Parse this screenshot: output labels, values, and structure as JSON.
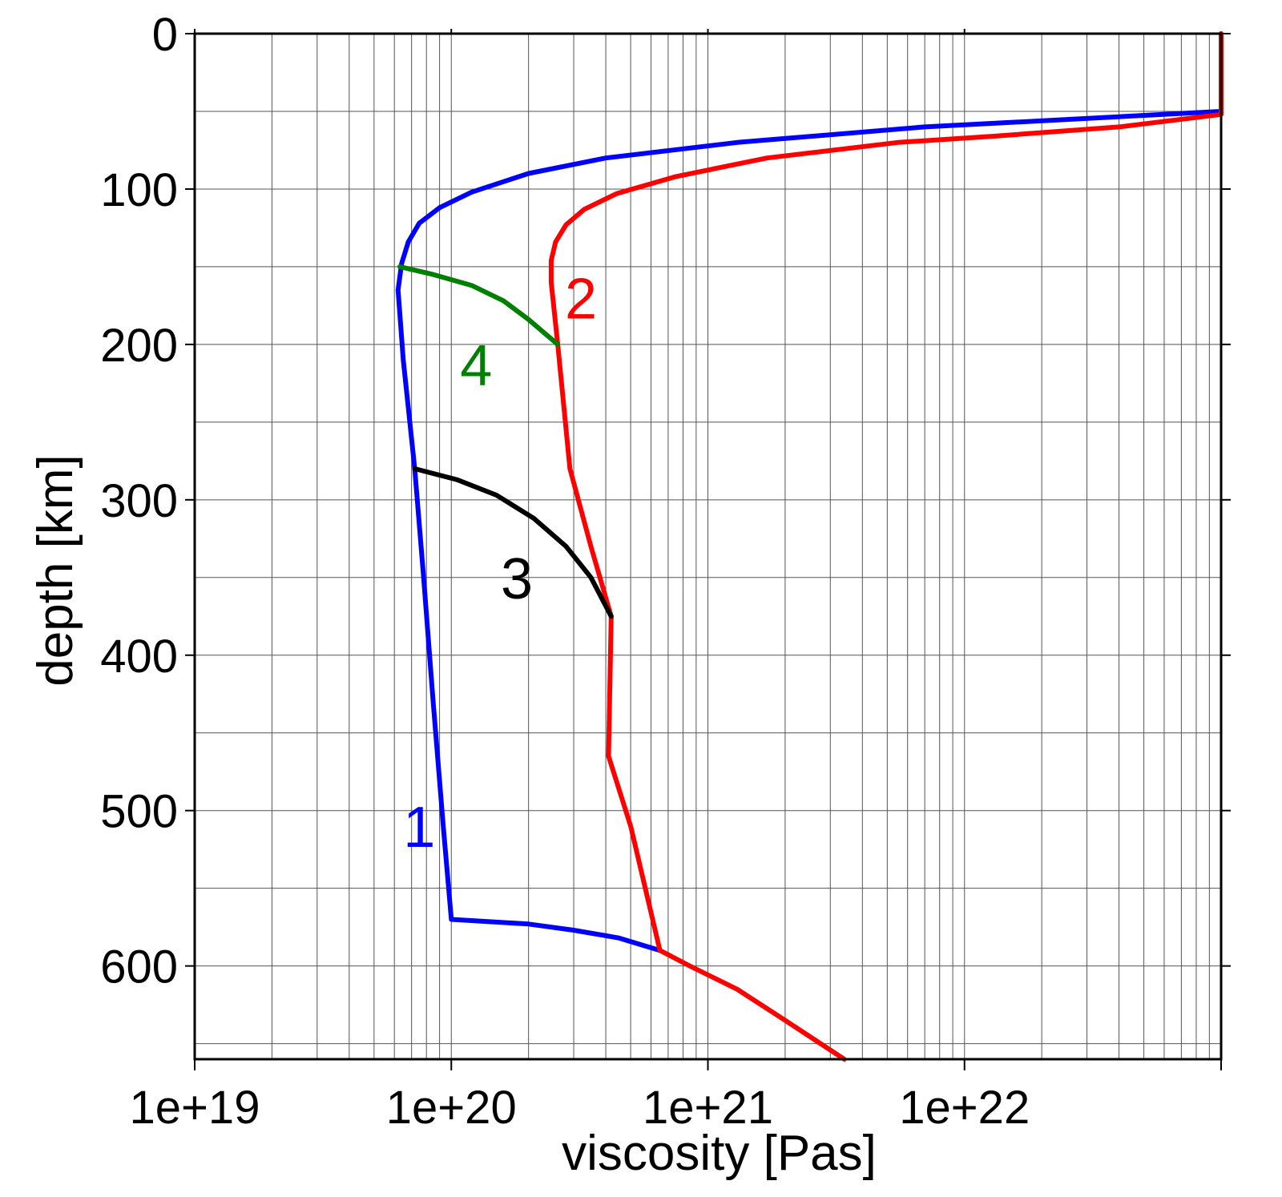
{
  "chart_data": {
    "type": "line",
    "title": "",
    "xlabel": "viscosity [Pas]",
    "ylabel": "depth [km]",
    "x_scale": "log",
    "xlim": [
      1e+19,
      1e+23
    ],
    "ylim": [
      0,
      660
    ],
    "y_inverted": true,
    "grid": true,
    "x_ticks": [
      {
        "value": 1e+19,
        "label": "1e+19"
      },
      {
        "value": 1e+20,
        "label": "1e+20"
      },
      {
        "value": 1e+21,
        "label": "1e+21"
      },
      {
        "value": 1e+22,
        "label": "1e+22"
      }
    ],
    "y_ticks": [
      {
        "value": 0,
        "label": "0"
      },
      {
        "value": 100,
        "label": "100"
      },
      {
        "value": 200,
        "label": "200"
      },
      {
        "value": 300,
        "label": "300"
      },
      {
        "value": 400,
        "label": "400"
      },
      {
        "value": 500,
        "label": "500"
      },
      {
        "value": 600,
        "label": "600"
      }
    ],
    "series": [
      {
        "label": "1",
        "color": "#0000ff",
        "label_at": [
          7.5e+19,
          510
        ],
        "points": [
          [
            1e+23,
            0
          ],
          [
            1e+23,
            50
          ],
          [
            7e+21,
            60
          ],
          [
            1.3e+21,
            70
          ],
          [
            4e+20,
            80
          ],
          [
            2e+20,
            90
          ],
          [
            1.2e+20,
            102
          ],
          [
            9e+19,
            112
          ],
          [
            7.5e+19,
            122
          ],
          [
            6.8e+19,
            134
          ],
          [
            6.4e+19,
            148
          ],
          [
            6.2e+19,
            165
          ],
          [
            6.5e+19,
            210
          ],
          [
            7.2e+19,
            280
          ],
          [
            7.8e+19,
            350
          ],
          [
            8.5e+19,
            430
          ],
          [
            9.3e+19,
            510
          ],
          [
            1e+20,
            570
          ],
          [
            2e+20,
            573
          ],
          [
            3e+20,
            577
          ],
          [
            4.5e+20,
            582
          ],
          [
            6.5e+20,
            590
          ]
        ]
      },
      {
        "label": "2",
        "color": "#ff0000",
        "label_at": [
          3.2e+20,
          170
        ],
        "points": [
          [
            1e+23,
            0
          ],
          [
            1e+23,
            52
          ],
          [
            4e+22,
            60
          ],
          [
            1.3e+22,
            66
          ],
          [
            5.5e+21,
            70
          ],
          [
            1.7e+21,
            80
          ],
          [
            7.5e+20,
            92
          ],
          [
            4.4e+20,
            103
          ],
          [
            3.3e+20,
            113
          ],
          [
            2.8e+20,
            123
          ],
          [
            2.55e+20,
            134
          ],
          [
            2.45e+20,
            146
          ],
          [
            2.45e+20,
            160
          ],
          [
            2.6e+20,
            200
          ],
          [
            2.9e+20,
            280
          ],
          [
            3.5e+20,
            330
          ],
          [
            4.2e+20,
            375
          ],
          [
            4.1e+20,
            465
          ],
          [
            5e+20,
            510
          ],
          [
            6.5e+20,
            590
          ],
          [
            8.5e+20,
            600
          ],
          [
            1.3e+21,
            615
          ],
          [
            2e+21,
            635
          ],
          [
            3.4e+21,
            660
          ]
        ]
      },
      {
        "label": "3",
        "color": "#000000",
        "label_at": [
          1.8e+20,
          350
        ],
        "points": [
          [
            7.2e+19,
            280
          ],
          [
            1.05e+20,
            287
          ],
          [
            1.5e+20,
            297
          ],
          [
            2.1e+20,
            312
          ],
          [
            2.8e+20,
            330
          ],
          [
            3.5e+20,
            350
          ],
          [
            4.2e+20,
            375
          ]
        ]
      },
      {
        "label": "4",
        "color": "#008000",
        "label_at": [
          1.25e+20,
          213
        ],
        "points": [
          [
            6.3e+19,
            150
          ],
          [
            8.5e+19,
            155
          ],
          [
            1.2e+20,
            162
          ],
          [
            1.6e+20,
            172
          ],
          [
            2e+20,
            184
          ],
          [
            2.6e+20,
            200
          ]
        ]
      }
    ]
  }
}
